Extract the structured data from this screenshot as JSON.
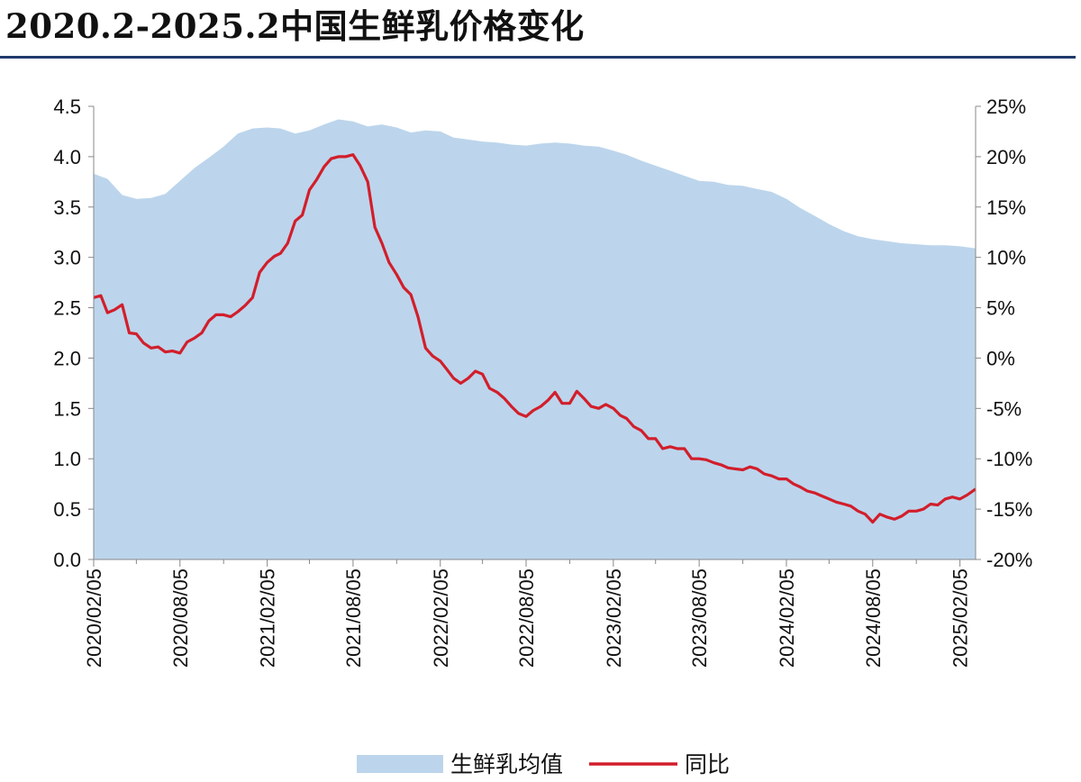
{
  "title": "2020.2-2025.2中国生鲜乳价格变化",
  "colors": {
    "area": "#bcd5ec",
    "line": "#d21e2b",
    "axis": "#888888",
    "title_rule": "#1f3a6b"
  },
  "chart_data": {
    "type": "area",
    "title": "2020.2-2025.2中国生鲜乳价格变化",
    "y_left": {
      "range": [
        0,
        4.5
      ],
      "ticks": [
        "0.0",
        "0.5",
        "1.0",
        "1.5",
        "2.0",
        "2.5",
        "3.0",
        "3.5",
        "4.0",
        "4.5"
      ]
    },
    "y_right": {
      "range": [
        -0.2,
        0.25
      ],
      "ticks": [
        "-20%",
        "-15%",
        "-10%",
        "-5%",
        "0%",
        "5%",
        "10%",
        "15%",
        "20%",
        "25%"
      ]
    },
    "x_range": [
      "2020-02-05",
      "2025-03-10"
    ],
    "x_tick_labels": [
      "2020/02/05",
      "2020/08/05",
      "2021/02/05",
      "2021/08/05",
      "2022/02/05",
      "2022/08/05",
      "2023/02/05",
      "2023/08/05",
      "2024/02/05",
      "2024/08/05",
      "2025/02/05"
    ],
    "grid": false,
    "legend_position": "bottom",
    "series": [
      {
        "name": "生鲜乳均值",
        "type": "area",
        "axis": "left",
        "points": [
          [
            "2020-02-05",
            3.83
          ],
          [
            "2020-03-05",
            3.78
          ],
          [
            "2020-04-05",
            3.62
          ],
          [
            "2020-05-05",
            3.58
          ],
          [
            "2020-06-05",
            3.59
          ],
          [
            "2020-07-05",
            3.63
          ],
          [
            "2020-08-05",
            3.76
          ],
          [
            "2020-09-05",
            3.89
          ],
          [
            "2020-10-05",
            3.99
          ],
          [
            "2020-11-05",
            4.1
          ],
          [
            "2020-12-05",
            4.23
          ],
          [
            "2021-01-05",
            4.28
          ],
          [
            "2021-02-05",
            4.29
          ],
          [
            "2021-03-05",
            4.28
          ],
          [
            "2021-04-05",
            4.23
          ],
          [
            "2021-05-05",
            4.26
          ],
          [
            "2021-06-05",
            4.32
          ],
          [
            "2021-07-05",
            4.37
          ],
          [
            "2021-08-05",
            4.35
          ],
          [
            "2021-09-05",
            4.3
          ],
          [
            "2021-10-05",
            4.32
          ],
          [
            "2021-11-05",
            4.29
          ],
          [
            "2021-12-05",
            4.24
          ],
          [
            "2022-01-05",
            4.26
          ],
          [
            "2022-02-05",
            4.25
          ],
          [
            "2022-03-05",
            4.19
          ],
          [
            "2022-04-05",
            4.17
          ],
          [
            "2022-05-05",
            4.15
          ],
          [
            "2022-06-05",
            4.14
          ],
          [
            "2022-07-05",
            4.12
          ],
          [
            "2022-08-05",
            4.11
          ],
          [
            "2022-09-05",
            4.13
          ],
          [
            "2022-10-05",
            4.14
          ],
          [
            "2022-11-05",
            4.13
          ],
          [
            "2022-12-05",
            4.11
          ],
          [
            "2023-01-05",
            4.1
          ],
          [
            "2023-02-05",
            4.06
          ],
          [
            "2023-03-05",
            4.02
          ],
          [
            "2023-04-05",
            3.96
          ],
          [
            "2023-05-05",
            3.91
          ],
          [
            "2023-06-05",
            3.86
          ],
          [
            "2023-07-05",
            3.81
          ],
          [
            "2023-08-05",
            3.76
          ],
          [
            "2023-09-05",
            3.75
          ],
          [
            "2023-10-05",
            3.72
          ],
          [
            "2023-11-05",
            3.71
          ],
          [
            "2023-12-05",
            3.68
          ],
          [
            "2024-01-05",
            3.65
          ],
          [
            "2024-02-05",
            3.58
          ],
          [
            "2024-03-05",
            3.49
          ],
          [
            "2024-04-05",
            3.41
          ],
          [
            "2024-05-05",
            3.33
          ],
          [
            "2024-06-05",
            3.26
          ],
          [
            "2024-07-05",
            3.21
          ],
          [
            "2024-08-05",
            3.18
          ],
          [
            "2024-09-05",
            3.16
          ],
          [
            "2024-10-05",
            3.14
          ],
          [
            "2024-11-05",
            3.13
          ],
          [
            "2024-12-05",
            3.12
          ],
          [
            "2025-01-05",
            3.12
          ],
          [
            "2025-02-05",
            3.11
          ],
          [
            "2025-03-10",
            3.09
          ]
        ]
      },
      {
        "name": "同比",
        "type": "line",
        "axis": "right",
        "points": [
          [
            "2020-02-05",
            0.06
          ],
          [
            "2020-02-20",
            0.062
          ],
          [
            "2020-03-05",
            0.045
          ],
          [
            "2020-03-20",
            0.048
          ],
          [
            "2020-04-05",
            0.053
          ],
          [
            "2020-04-20",
            0.025
          ],
          [
            "2020-05-05",
            0.024
          ],
          [
            "2020-05-20",
            0.015
          ],
          [
            "2020-06-05",
            0.01
          ],
          [
            "2020-06-20",
            0.011
          ],
          [
            "2020-07-05",
            0.006
          ],
          [
            "2020-07-20",
            0.007
          ],
          [
            "2020-08-05",
            0.005
          ],
          [
            "2020-08-20",
            0.016
          ],
          [
            "2020-09-05",
            0.02
          ],
          [
            "2020-09-20",
            0.025
          ],
          [
            "2020-10-05",
            0.037
          ],
          [
            "2020-10-20",
            0.043
          ],
          [
            "2020-11-05",
            0.043
          ],
          [
            "2020-11-20",
            0.041
          ],
          [
            "2020-12-05",
            0.046
          ],
          [
            "2020-12-20",
            0.052
          ],
          [
            "2021-01-05",
            0.06
          ],
          [
            "2021-01-20",
            0.085
          ],
          [
            "2021-02-05",
            0.095
          ],
          [
            "2021-02-20",
            0.101
          ],
          [
            "2021-03-05",
            0.104
          ],
          [
            "2021-03-20",
            0.114
          ],
          [
            "2021-04-05",
            0.136
          ],
          [
            "2021-04-20",
            0.142
          ],
          [
            "2021-05-05",
            0.167
          ],
          [
            "2021-05-20",
            0.177
          ],
          [
            "2021-06-05",
            0.19
          ],
          [
            "2021-06-20",
            0.198
          ],
          [
            "2021-07-05",
            0.2
          ],
          [
            "2021-07-20",
            0.2
          ],
          [
            "2021-08-05",
            0.202
          ],
          [
            "2021-08-20",
            0.191
          ],
          [
            "2021-09-05",
            0.175
          ],
          [
            "2021-09-20",
            0.13
          ],
          [
            "2021-10-05",
            0.114
          ],
          [
            "2021-10-20",
            0.095
          ],
          [
            "2021-11-05",
            0.083
          ],
          [
            "2021-11-20",
            0.07
          ],
          [
            "2021-12-05",
            0.063
          ],
          [
            "2021-12-20",
            0.041
          ],
          [
            "2022-01-05",
            0.01
          ],
          [
            "2022-01-20",
            0.002
          ],
          [
            "2022-02-05",
            -0.003
          ],
          [
            "2022-02-20",
            -0.012
          ],
          [
            "2022-03-05",
            -0.02
          ],
          [
            "2022-03-20",
            -0.025
          ],
          [
            "2022-04-05",
            -0.02
          ],
          [
            "2022-04-20",
            -0.013
          ],
          [
            "2022-05-05",
            -0.016
          ],
          [
            "2022-05-20",
            -0.03
          ],
          [
            "2022-06-05",
            -0.034
          ],
          [
            "2022-06-20",
            -0.04
          ],
          [
            "2022-07-05",
            -0.048
          ],
          [
            "2022-07-20",
            -0.055
          ],
          [
            "2022-08-05",
            -0.058
          ],
          [
            "2022-08-20",
            -0.052
          ],
          [
            "2022-09-05",
            -0.048
          ],
          [
            "2022-09-20",
            -0.042
          ],
          [
            "2022-10-05",
            -0.034
          ],
          [
            "2022-10-20",
            -0.045
          ],
          [
            "2022-11-05",
            -0.045
          ],
          [
            "2022-11-20",
            -0.033
          ],
          [
            "2022-12-05",
            -0.04
          ],
          [
            "2022-12-20",
            -0.048
          ],
          [
            "2023-01-05",
            -0.05
          ],
          [
            "2023-01-20",
            -0.046
          ],
          [
            "2023-02-05",
            -0.05
          ],
          [
            "2023-02-20",
            -0.057
          ],
          [
            "2023-03-05",
            -0.06
          ],
          [
            "2023-03-20",
            -0.068
          ],
          [
            "2023-04-05",
            -0.072
          ],
          [
            "2023-04-20",
            -0.08
          ],
          [
            "2023-05-05",
            -0.08
          ],
          [
            "2023-05-20",
            -0.09
          ],
          [
            "2023-06-05",
            -0.088
          ],
          [
            "2023-06-20",
            -0.09
          ],
          [
            "2023-07-05",
            -0.09
          ],
          [
            "2023-07-20",
            -0.1
          ],
          [
            "2023-08-05",
            -0.1
          ],
          [
            "2023-08-20",
            -0.101
          ],
          [
            "2023-09-05",
            -0.104
          ],
          [
            "2023-09-20",
            -0.106
          ],
          [
            "2023-10-05",
            -0.109
          ],
          [
            "2023-10-20",
            -0.11
          ],
          [
            "2023-11-05",
            -0.111
          ],
          [
            "2023-11-20",
            -0.108
          ],
          [
            "2023-12-05",
            -0.11
          ],
          [
            "2023-12-20",
            -0.115
          ],
          [
            "2024-01-05",
            -0.117
          ],
          [
            "2024-01-20",
            -0.12
          ],
          [
            "2024-02-05",
            -0.12
          ],
          [
            "2024-02-20",
            -0.125
          ],
          [
            "2024-03-05",
            -0.128
          ],
          [
            "2024-03-20",
            -0.132
          ],
          [
            "2024-04-05",
            -0.134
          ],
          [
            "2024-04-20",
            -0.137
          ],
          [
            "2024-05-05",
            -0.14
          ],
          [
            "2024-05-20",
            -0.143
          ],
          [
            "2024-06-05",
            -0.145
          ],
          [
            "2024-06-20",
            -0.147
          ],
          [
            "2024-07-05",
            -0.152
          ],
          [
            "2024-07-20",
            -0.155
          ],
          [
            "2024-08-05",
            -0.163
          ],
          [
            "2024-08-20",
            -0.155
          ],
          [
            "2024-09-05",
            -0.158
          ],
          [
            "2024-09-20",
            -0.16
          ],
          [
            "2024-10-05",
            -0.157
          ],
          [
            "2024-10-20",
            -0.152
          ],
          [
            "2024-11-05",
            -0.152
          ],
          [
            "2024-11-20",
            -0.15
          ],
          [
            "2024-12-05",
            -0.145
          ],
          [
            "2024-12-20",
            -0.146
          ],
          [
            "2025-01-05",
            -0.14
          ],
          [
            "2025-01-20",
            -0.138
          ],
          [
            "2025-02-05",
            -0.14
          ],
          [
            "2025-02-20",
            -0.136
          ],
          [
            "2025-03-10",
            -0.13
          ]
        ]
      }
    ]
  },
  "legend": {
    "area_label": "生鲜乳均值",
    "line_label": "同比"
  }
}
